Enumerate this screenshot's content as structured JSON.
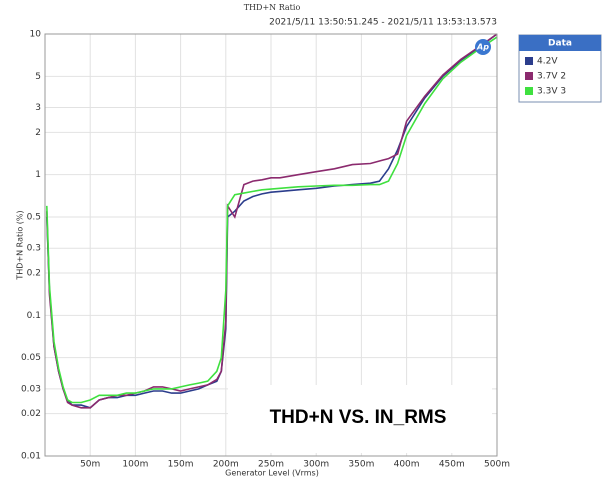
{
  "chart_data": {
    "type": "line",
    "title": "THD+N Ratio",
    "subtitle": "2021/5/11 13:50:51.245 - 2021/5/11 13:53:13.573",
    "x_label": "Generator Level (Vrms)",
    "y_label": "THD+N Ratio (%)",
    "annotation": "THD+N VS. IN_RMS",
    "logo": "Ap",
    "legend_title": "Data",
    "legend": "top-right",
    "grid": true,
    "yscale": "log",
    "xlim": [
      0,
      0.5
    ],
    "ylim": [
      0.01,
      10
    ],
    "xticks": [
      {
        "value": 0.05,
        "label": "50m"
      },
      {
        "value": 0.1,
        "label": "100m"
      },
      {
        "value": 0.15,
        "label": "150m"
      },
      {
        "value": 0.2,
        "label": "200m"
      },
      {
        "value": 0.25,
        "label": "250m"
      },
      {
        "value": 0.3,
        "label": "300m"
      },
      {
        "value": 0.35,
        "label": "350m"
      },
      {
        "value": 0.4,
        "label": "400m"
      },
      {
        "value": 0.45,
        "label": "450m"
      },
      {
        "value": 0.5,
        "label": "500m"
      }
    ],
    "yticks": [
      10,
      5,
      3,
      2,
      1,
      0.5,
      0.3,
      0.2,
      0.1,
      0.05,
      0.03,
      0.02,
      0.01
    ],
    "x": [
      0.002,
      0.005,
      0.01,
      0.015,
      0.02,
      0.025,
      0.03,
      0.04,
      0.05,
      0.06,
      0.07,
      0.08,
      0.09,
      0.1,
      0.11,
      0.12,
      0.13,
      0.14,
      0.15,
      0.16,
      0.17,
      0.18,
      0.19,
      0.195,
      0.2,
      0.202,
      0.21,
      0.22,
      0.23,
      0.24,
      0.25,
      0.26,
      0.28,
      0.3,
      0.32,
      0.34,
      0.36,
      0.37,
      0.38,
      0.39,
      0.4,
      0.42,
      0.44,
      0.46,
      0.48,
      0.5
    ],
    "series": [
      {
        "name": "4.2V",
        "color": "#2b3d8c",
        "values": [
          0.5,
          0.15,
          0.06,
          0.04,
          0.03,
          0.025,
          0.023,
          0.023,
          0.022,
          0.025,
          0.026,
          0.026,
          0.027,
          0.027,
          0.028,
          0.029,
          0.029,
          0.028,
          0.028,
          0.029,
          0.03,
          0.032,
          0.034,
          0.04,
          0.08,
          0.5,
          0.55,
          0.65,
          0.7,
          0.73,
          0.75,
          0.76,
          0.78,
          0.8,
          0.83,
          0.85,
          0.87,
          0.9,
          1.1,
          1.5,
          2.2,
          3.5,
          5,
          6.5,
          8,
          10
        ]
      },
      {
        "name": "3.7V 2",
        "color": "#8b2a6e",
        "values": [
          0.55,
          0.14,
          0.06,
          0.04,
          0.03,
          0.024,
          0.023,
          0.022,
          0.022,
          0.025,
          0.026,
          0.027,
          0.027,
          0.028,
          0.029,
          0.031,
          0.031,
          0.03,
          0.029,
          0.03,
          0.031,
          0.032,
          0.035,
          0.04,
          0.09,
          0.6,
          0.5,
          0.85,
          0.9,
          0.92,
          0.95,
          0.95,
          1.0,
          1.05,
          1.1,
          1.18,
          1.2,
          1.25,
          1.3,
          1.4,
          2.4,
          3.6,
          5.1,
          6.6,
          8.1,
          10
        ]
      },
      {
        "name": "3.3V 3",
        "color": "#3fe03f",
        "values": [
          0.6,
          0.16,
          0.065,
          0.042,
          0.031,
          0.025,
          0.024,
          0.024,
          0.025,
          0.027,
          0.027,
          0.027,
          0.028,
          0.028,
          0.029,
          0.03,
          0.03,
          0.03,
          0.031,
          0.032,
          0.033,
          0.034,
          0.04,
          0.05,
          0.15,
          0.6,
          0.72,
          0.74,
          0.76,
          0.78,
          0.79,
          0.8,
          0.82,
          0.83,
          0.84,
          0.84,
          0.85,
          0.85,
          0.9,
          1.2,
          1.9,
          3.2,
          4.8,
          6.3,
          7.8,
          9.5
        ]
      }
    ]
  }
}
